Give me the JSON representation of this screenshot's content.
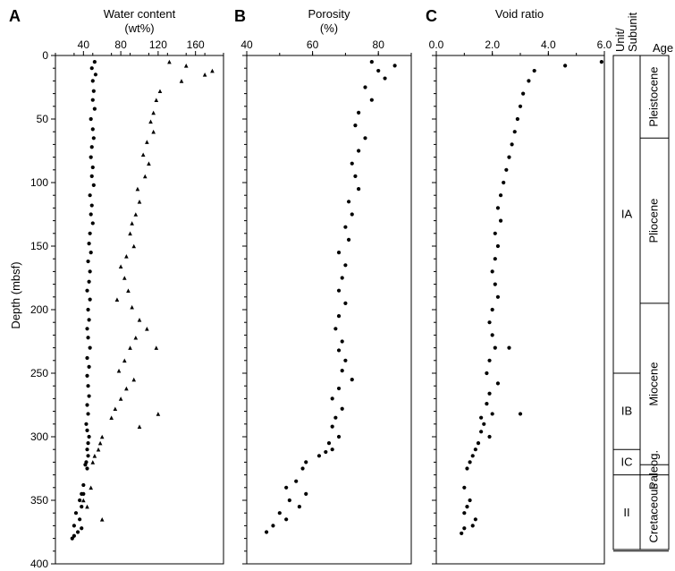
{
  "figure": {
    "panel_letters": [
      "A",
      "B",
      "C"
    ],
    "y_axis_label": "Depth (mbsf)",
    "unit_header": [
      "Unit/",
      "Subunit"
    ],
    "age_header": "Age"
  },
  "chart_data": [
    {
      "panel": "A",
      "type": "scatter",
      "title": "Water content",
      "title_line2": "(wt%)",
      "xlim": [
        10,
        190
      ],
      "xticks": [
        40,
        80,
        120,
        160
      ],
      "xtick_labels": [
        "40",
        "80",
        "120",
        "160"
      ],
      "ylim": [
        0,
        400
      ],
      "yticks": [
        0,
        50,
        100,
        150,
        200,
        250,
        300,
        350,
        400
      ],
      "ytick_labels": [
        "0",
        "50",
        "100",
        "150",
        "200",
        "250",
        "300",
        "350",
        "400"
      ],
      "y_inverted": true,
      "series": [
        {
          "marker": "circle",
          "x": [
            52,
            49,
            53,
            50,
            51,
            50,
            52,
            48,
            50,
            51,
            49,
            48,
            50,
            49,
            51,
            47,
            49,
            48,
            50,
            47,
            46,
            48,
            45,
            47,
            46,
            44,
            47,
            45,
            46,
            44,
            45,
            47,
            44,
            46,
            44,
            45,
            46,
            44,
            45,
            43,
            44,
            46,
            45,
            44,
            45,
            43,
            42,
            44,
            40,
            38,
            36,
            32,
            30,
            40,
            38,
            36,
            38,
            34,
            30,
            28
          ],
          "y": [
            5,
            10,
            15,
            20,
            28,
            35,
            42,
            50,
            58,
            65,
            72,
            80,
            88,
            95,
            102,
            110,
            118,
            125,
            132,
            140,
            148,
            155,
            162,
            170,
            178,
            185,
            192,
            200,
            208,
            215,
            222,
            230,
            238,
            245,
            252,
            260,
            268,
            275,
            282,
            290,
            295,
            300,
            305,
            310,
            315,
            320,
            322,
            325,
            338,
            345,
            350,
            360,
            370,
            345,
            355,
            365,
            372,
            375,
            378,
            380
          ]
        },
        {
          "marker": "triangle",
          "x": [
            132,
            150,
            178,
            170,
            145,
            122,
            118,
            115,
            112,
            115,
            108,
            104,
            110,
            106,
            98,
            100,
            96,
            92,
            90,
            94,
            86,
            80,
            84,
            88,
            76,
            92,
            100,
            108,
            96,
            90,
            84,
            78,
            94,
            86,
            80,
            74,
            70,
            100,
            118,
            120,
            60,
            58,
            56,
            52,
            50,
            48,
            40,
            44,
            60
          ],
          "y": [
            5,
            8,
            12,
            15,
            20,
            28,
            35,
            45,
            52,
            60,
            68,
            78,
            85,
            95,
            105,
            115,
            125,
            132,
            140,
            150,
            158,
            166,
            175,
            185,
            192,
            198,
            208,
            215,
            222,
            230,
            240,
            248,
            255,
            262,
            270,
            278,
            285,
            292,
            230,
            282,
            300,
            305,
            310,
            315,
            320,
            340,
            350,
            355,
            365
          ]
        }
      ]
    },
    {
      "panel": "B",
      "type": "scatter",
      "title": "Porosity",
      "title_line2": "(%)",
      "xlim": [
        40,
        90
      ],
      "xticks": [
        40,
        60,
        80
      ],
      "xtick_labels": [
        "40",
        "60",
        "80"
      ],
      "ylim": [
        0,
        400
      ],
      "y_inverted": true,
      "series": [
        {
          "marker": "circle",
          "x": [
            78,
            85,
            80,
            82,
            76,
            78,
            74,
            73,
            76,
            74,
            72,
            73,
            74,
            71,
            72,
            70,
            71,
            68,
            70,
            69,
            68,
            70,
            68,
            67,
            69,
            68,
            70,
            69,
            72,
            68,
            66,
            69,
            67,
            66,
            68,
            65,
            66,
            64,
            62,
            58,
            57,
            55,
            52,
            53,
            50,
            52,
            48,
            46,
            58,
            56
          ],
          "y": [
            5,
            8,
            12,
            18,
            25,
            35,
            45,
            55,
            65,
            75,
            85,
            95,
            105,
            115,
            125,
            135,
            145,
            155,
            165,
            175,
            185,
            195,
            205,
            215,
            225,
            232,
            240,
            248,
            255,
            262,
            270,
            278,
            285,
            292,
            300,
            305,
            310,
            312,
            315,
            320,
            325,
            335,
            340,
            350,
            360,
            365,
            370,
            375,
            345,
            355
          ]
        }
      ]
    },
    {
      "panel": "C",
      "type": "scatter",
      "title": "Void ratio",
      "title_line2": "",
      "xlim": [
        0,
        6
      ],
      "xticks": [
        0,
        2,
        4,
        6
      ],
      "xtick_labels": [
        "0.0",
        "2.0",
        "4.0",
        "6.0"
      ],
      "ylim": [
        0,
        400
      ],
      "y_inverted": true,
      "series": [
        {
          "marker": "circle",
          "x": [
            5.9,
            4.6,
            3.5,
            3.3,
            3.1,
            3.0,
            2.9,
            2.8,
            2.7,
            2.6,
            2.5,
            2.4,
            2.3,
            2.2,
            2.3,
            2.1,
            2.2,
            2.1,
            2.0,
            2.1,
            2.2,
            2.0,
            1.9,
            2.0,
            2.1,
            1.9,
            1.8,
            2.2,
            1.9,
            1.8,
            2.0,
            2.6,
            1.7,
            1.6,
            1.9,
            1.5,
            1.4,
            1.3,
            1.2,
            1.1,
            1.0,
            1.2,
            1.1,
            1.0,
            1.4,
            1.3,
            1.0,
            0.9,
            3.0,
            1.6
          ],
          "y": [
            5,
            8,
            12,
            20,
            30,
            40,
            50,
            60,
            70,
            80,
            90,
            100,
            110,
            120,
            130,
            140,
            150,
            160,
            170,
            180,
            190,
            200,
            210,
            220,
            230,
            240,
            250,
            258,
            266,
            274,
            282,
            230,
            290,
            296,
            300,
            305,
            310,
            315,
            320,
            325,
            340,
            350,
            355,
            360,
            365,
            370,
            372,
            376,
            282,
            285
          ]
        }
      ]
    }
  ],
  "stratigraphy": {
    "depth_range": [
      0,
      400
    ],
    "units": [
      {
        "label": "IA",
        "top": 0,
        "bottom": 250
      },
      {
        "label": "IB",
        "top": 250,
        "bottom": 310
      },
      {
        "label": "IC",
        "top": 310,
        "bottom": 330
      },
      {
        "label": "II",
        "top": 330,
        "bottom": 390
      }
    ],
    "ages": [
      {
        "label": "Pleistocene",
        "top": 0,
        "bottom": 65
      },
      {
        "label": "Pliocene",
        "top": 65,
        "bottom": 195
      },
      {
        "label": "Miocene",
        "top": 195,
        "bottom": 322
      },
      {
        "label": "Paleog.",
        "top": 322,
        "bottom": 330
      },
      {
        "label": "Cretaceous",
        "top": 330,
        "bottom": 390
      }
    ]
  }
}
